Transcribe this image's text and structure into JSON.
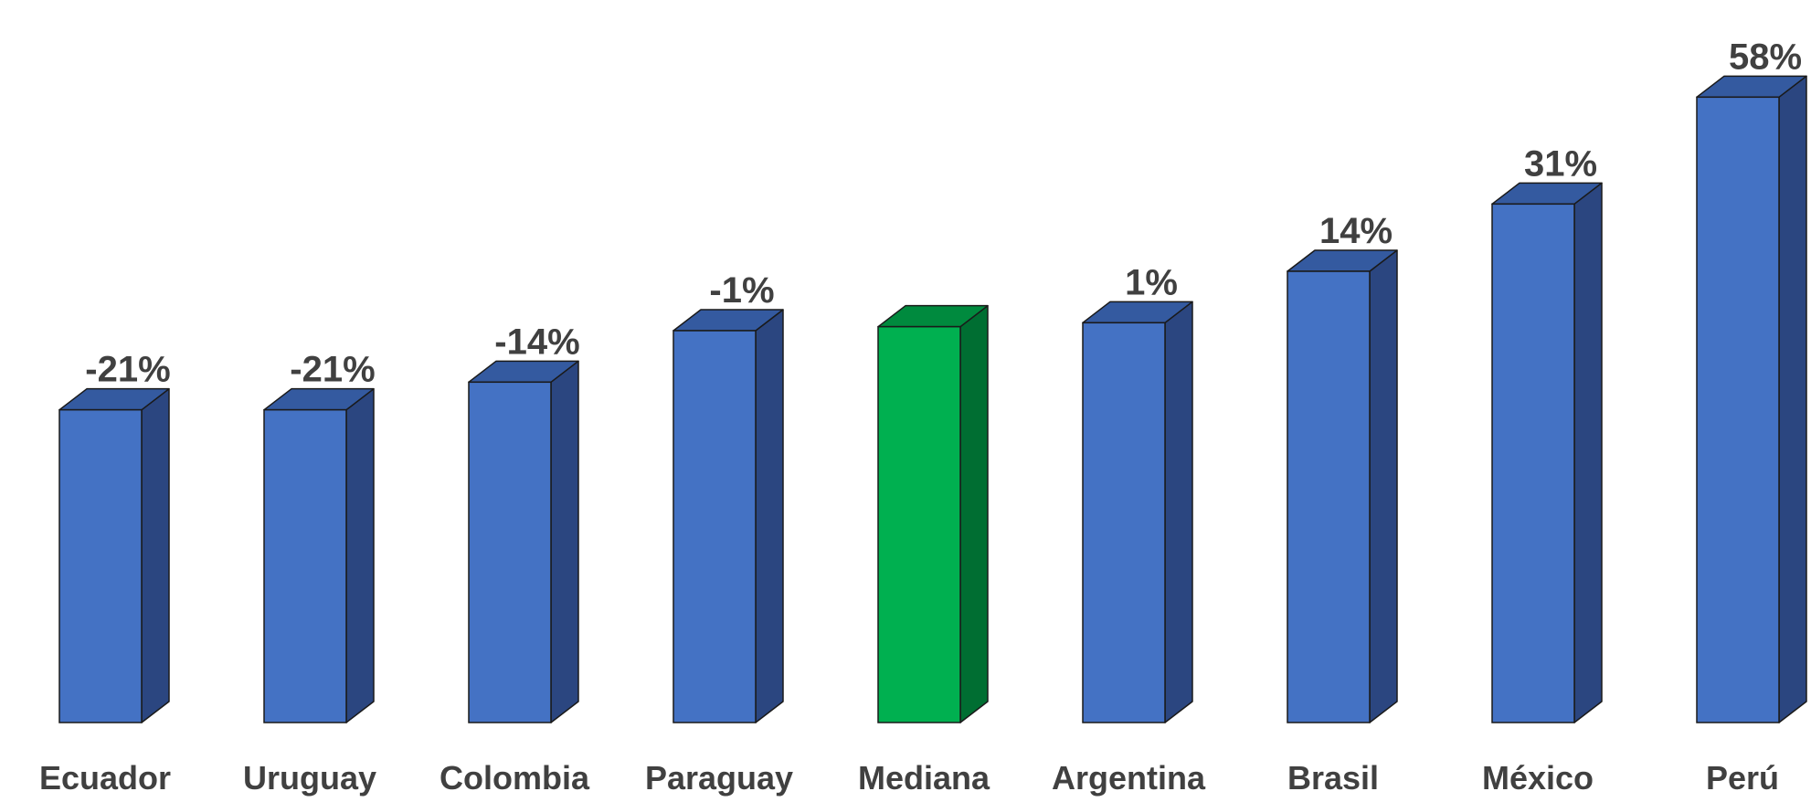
{
  "chart_data": {
    "type": "bar",
    "style": "3d",
    "title": "",
    "xlabel": "",
    "ylabel": "",
    "categories": [
      "Ecuador",
      "Uruguay",
      "Colombia",
      "Paraguay",
      "Mediana",
      "Argentina",
      "Brasil",
      "México",
      "Perú"
    ],
    "values": [
      -21,
      -21,
      -14,
      -1,
      0,
      1,
      14,
      31,
      58
    ],
    "value_labels": [
      "-21%",
      "-21%",
      "-14%",
      "-1%",
      "",
      "1%",
      "14%",
      "31%",
      "58%"
    ],
    "ylim": [
      -100,
      65
    ],
    "grid": false,
    "legend": "none",
    "colors": {
      "bar_front": "#4472C4",
      "bar_side": "#2B4680",
      "bar_top": "#345AA0",
      "highlight_front": "#00B050",
      "highlight_side": "#006E32",
      "highlight_top": "#008A3E",
      "label_text": "#404040"
    },
    "highlight_category": "Mediana"
  }
}
